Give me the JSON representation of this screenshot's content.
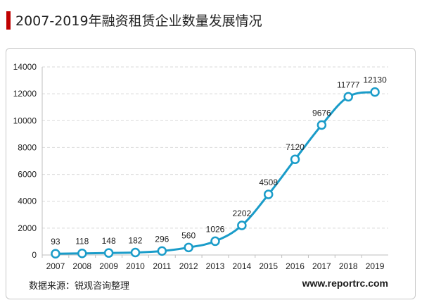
{
  "header": {
    "title": "2007-2019年融资租赁企业数量发展情况",
    "accent_color": "#c00000"
  },
  "footer": {
    "source": "数据来源：锐观咨询整理",
    "website": "www.reportrc.com"
  },
  "chart_data": {
    "type": "line",
    "categories": [
      "2007",
      "2008",
      "2009",
      "2010",
      "2011",
      "2012",
      "2013",
      "2014",
      "2015",
      "2016",
      "2017",
      "2018",
      "2019"
    ],
    "series": [
      {
        "values": [
          93,
          118,
          148,
          182,
          296,
          560,
          1026,
          2202,
          4508,
          7120,
          9676,
          11777,
          12130
        ],
        "color": "#1a9cc9"
      }
    ],
    "data_labels": [
      "93",
      "118",
      "148",
      "182",
      "296",
      "560",
      "1026",
      "2202",
      "4508",
      "7120",
      "9676",
      "11777",
      "12130"
    ],
    "y_ticks": [
      "0",
      "2000",
      "4000",
      "6000",
      "8000",
      "10000",
      "12000",
      "14000"
    ],
    "ylim": [
      0,
      14000
    ],
    "grid": true,
    "smooth": true,
    "marker": "hollow-circle"
  }
}
